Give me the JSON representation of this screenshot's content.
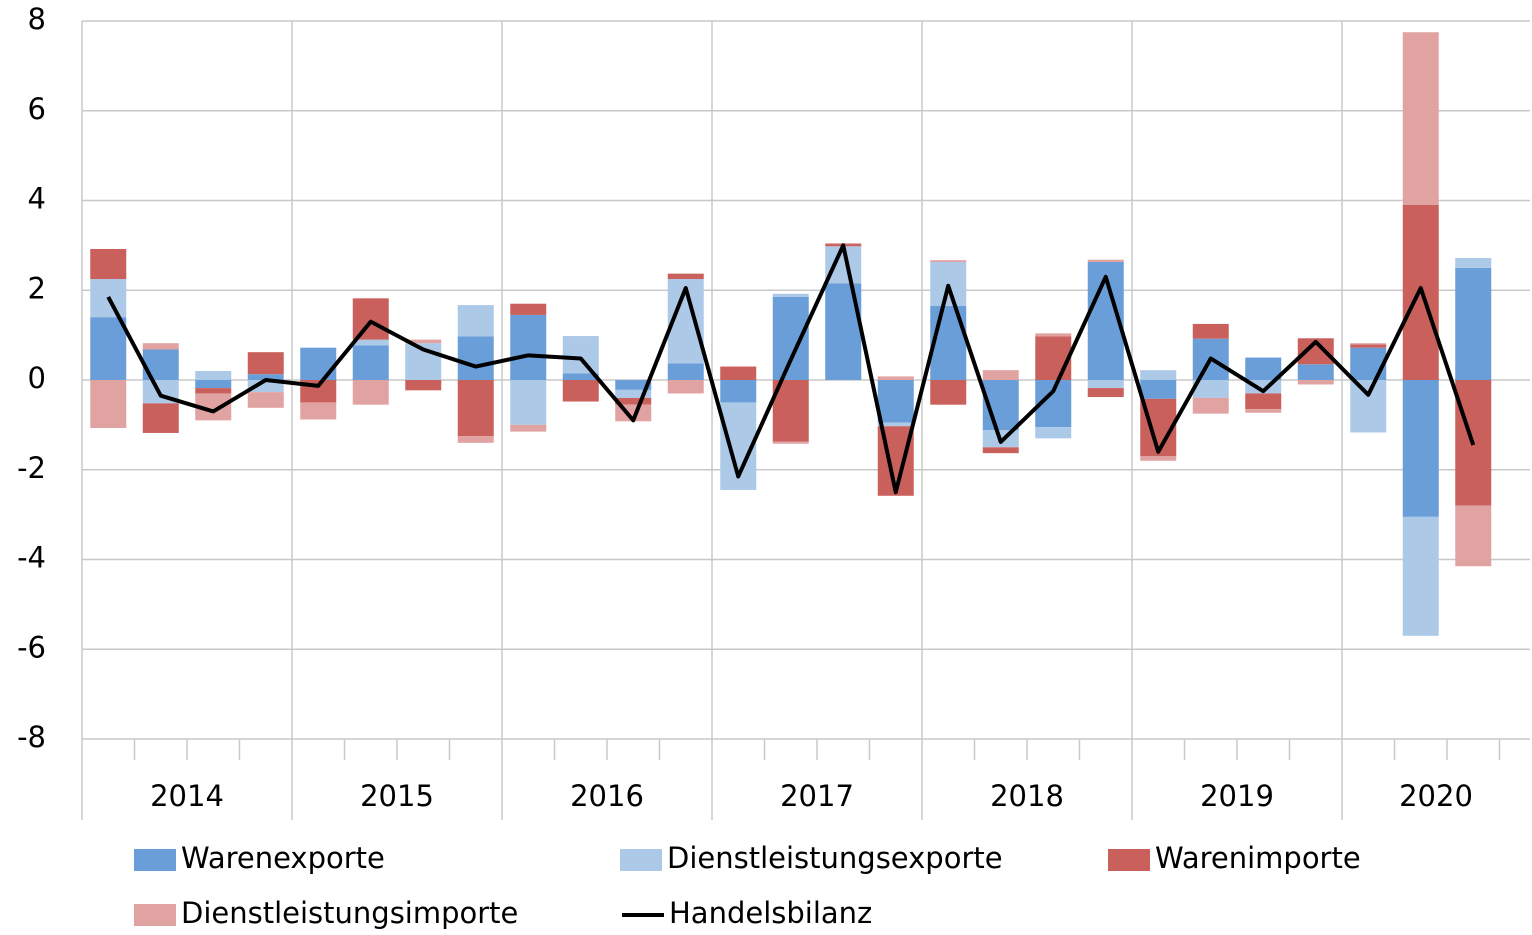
{
  "chart_data": {
    "type": "stacked_bar_line",
    "groups": [
      {
        "label": "2014",
        "size": 4
      },
      {
        "label": "2015",
        "size": 4
      },
      {
        "label": "2016",
        "size": 4
      },
      {
        "label": "2017",
        "size": 4
      },
      {
        "label": "2018",
        "size": 4
      },
      {
        "label": "2019",
        "size": 4
      },
      {
        "label": "2020",
        "size": 3
      }
    ],
    "ylim": [
      -8,
      8
    ],
    "yticks": [
      -8,
      -6,
      -4,
      -2,
      0,
      2,
      4,
      6,
      8
    ],
    "grid": true,
    "series": [
      {
        "name": "Warenexporte",
        "color": "#6a9ed9",
        "kind": "bar",
        "values": [
          1.4,
          0.68,
          -0.18,
          0.13,
          0.72,
          0.77,
          0,
          0.97,
          1.45,
          0.15,
          -0.22,
          0.37,
          -0.5,
          1.85,
          2.15,
          -0.95,
          1.65,
          -1.12,
          -1.05,
          2.63,
          -0.42,
          0.92,
          0.5,
          0.35,
          0.72,
          -3.05,
          2.5
        ]
      },
      {
        "name": "Dienstleistungsexporte",
        "color": "#adc9e8",
        "kind": "bar",
        "values": [
          0.85,
          -0.52,
          0.2,
          -0.27,
          0,
          0.13,
          0.82,
          0.7,
          -1.0,
          0.83,
          -0.18,
          1.88,
          -1.95,
          0.07,
          0.83,
          -0.08,
          0.98,
          -0.38,
          -0.25,
          -0.18,
          0.22,
          -0.4,
          -0.3,
          0,
          -1.17,
          -2.65,
          0.22
        ]
      },
      {
        "name": "Warenimporte",
        "color": "#c9605c",
        "kind": "bar",
        "values": [
          0.67,
          -0.66,
          -0.12,
          0.49,
          -0.5,
          0.92,
          -0.23,
          -1.25,
          0.25,
          -0.48,
          -0.15,
          0.12,
          0.3,
          -1.37,
          0.05,
          -1.55,
          -0.55,
          -0.13,
          0.97,
          -0.2,
          -1.28,
          0.33,
          -0.35,
          0.58,
          0.07,
          3.9,
          -2.8
        ]
      },
      {
        "name": "Dienstleistungsimporte",
        "color": "#e0a3a2",
        "kind": "bar",
        "values": [
          -1.07,
          0.14,
          -0.6,
          -0.35,
          -0.38,
          -0.55,
          0.08,
          -0.15,
          -0.15,
          0,
          -0.37,
          -0.3,
          0,
          -0.05,
          0.02,
          0.08,
          0.04,
          0.22,
          0.07,
          0.05,
          -0.1,
          -0.35,
          -0.08,
          -0.1,
          0.03,
          3.85,
          -1.35
        ]
      },
      {
        "name": "Handelsbilanz",
        "color": "#000000",
        "kind": "line",
        "values": [
          1.85,
          -0.35,
          -0.7,
          0.0,
          -0.13,
          1.3,
          0.68,
          0.3,
          0.55,
          0.48,
          -0.9,
          2.05,
          -2.15,
          0.45,
          3.0,
          -2.5,
          2.1,
          -1.38,
          -0.25,
          2.3,
          -1.6,
          0.48,
          -0.25,
          0.85,
          -0.33,
          2.05,
          -1.45
        ]
      }
    ]
  }
}
